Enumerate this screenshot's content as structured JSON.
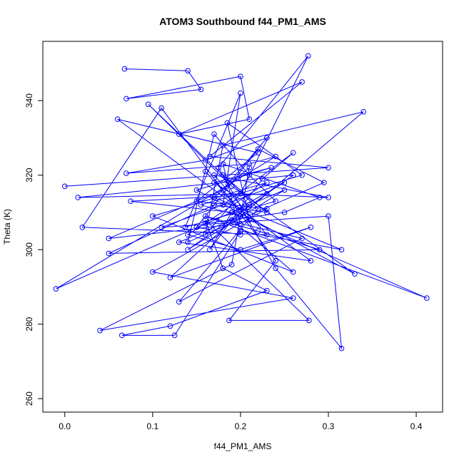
{
  "chart_data": {
    "type": "line",
    "markers": true,
    "title": "ATOM3 Southbound f44_PM1_AMS",
    "x_label": "f44_PM1_AMS",
    "y_label": "Theta (K)",
    "color": "#0000ff",
    "xlim": [
      -0.025,
      0.43
    ],
    "ylim": [
      256.4,
      355.9
    ],
    "xticks": [
      {
        "value": 0,
        "label": "0.0"
      },
      {
        "value": 0.1,
        "label": "0.1"
      },
      {
        "value": 0.2,
        "label": "0.2"
      },
      {
        "value": 0.3,
        "label": "0.3"
      },
      {
        "value": 0.4,
        "label": "0.4"
      }
    ],
    "yticks": [
      260,
      280,
      300,
      320,
      340
    ],
    "x": [
      0.068,
      0.14,
      0.155,
      0.07,
      0.2,
      0.21,
      0.13,
      0.27,
      0.165,
      0.3,
      0.0,
      0.18,
      0.23,
      0.17,
      0.05,
      0.29,
      0.22,
      0.16,
      0.412,
      0.19,
      0.25,
      0.11,
      0.3,
      0.315,
      0.24,
      0.175,
      0.277,
      0.2,
      0.16,
      0.18,
      0.34,
      0.2,
      0.13,
      0.28,
      0.06,
      0.22,
      0.15,
      0.23,
      0.1,
      0.26,
      0.04,
      0.19,
      0.21,
      0.17,
      0.315,
      0.2,
      0.125,
      0.065,
      0.12,
      0.23,
      0.18,
      0.16,
      0.278,
      0.187,
      0.24,
      0.11,
      0.02,
      0.23,
      0.17,
      0.3,
      0.2,
      0.015,
      0.26,
      0.14,
      0.25,
      0.19,
      -0.01,
      0.24,
      0.21,
      0.07,
      0.16,
      0.23,
      0.18,
      0.05,
      0.2,
      0.27,
      0.13,
      0.22,
      0.095,
      0.19,
      0.33,
      0.15,
      0.235,
      0.17,
      0.21,
      0.12,
      0.28,
      0.2,
      0.14,
      0.23,
      0.1,
      0.26,
      0.19,
      0.16,
      0.25,
      0.29,
      0.18,
      0.2,
      0.15,
      0.22,
      0.295,
      0.14,
      0.17,
      0.21,
      0.24,
      0.137,
      0.2,
      0.18,
      0.26,
      0.225,
      0.165,
      0.19,
      0.075,
      0.23,
      0.2,
      0.155,
      0.27,
      0.185,
      0.21,
      0.16
    ],
    "values": [
      348.5,
      348,
      343,
      340.5,
      346.5,
      335,
      331,
      345,
      325,
      322,
      317,
      320,
      310,
      312,
      299,
      300,
      305,
      309,
      287,
      310,
      318,
      306,
      309,
      273.5,
      295,
      322,
      352,
      315,
      304,
      328,
      337,
      309,
      302,
      297,
      335,
      326,
      313,
      311,
      294,
      287,
      278.3,
      296,
      322,
      314,
      300,
      305,
      277,
      277,
      279.5,
      289,
      295,
      308,
      281,
      281,
      297,
      338,
      306,
      304,
      320,
      314,
      315,
      314,
      320,
      300,
      316,
      310,
      289.5,
      325,
      323,
      320.5,
      324,
      330,
      316,
      303,
      307,
      303,
      286,
      311,
      339,
      317,
      293.5,
      316,
      322,
      318,
      312,
      292.5,
      306,
      300,
      304,
      318,
      309,
      294,
      308,
      307,
      310,
      314,
      323,
      304,
      306,
      327,
      318,
      302,
      331,
      320,
      313,
      306,
      342,
      312,
      326,
      319,
      300,
      310,
      313,
      315,
      309,
      312,
      320,
      334,
      308,
      321
    ]
  }
}
